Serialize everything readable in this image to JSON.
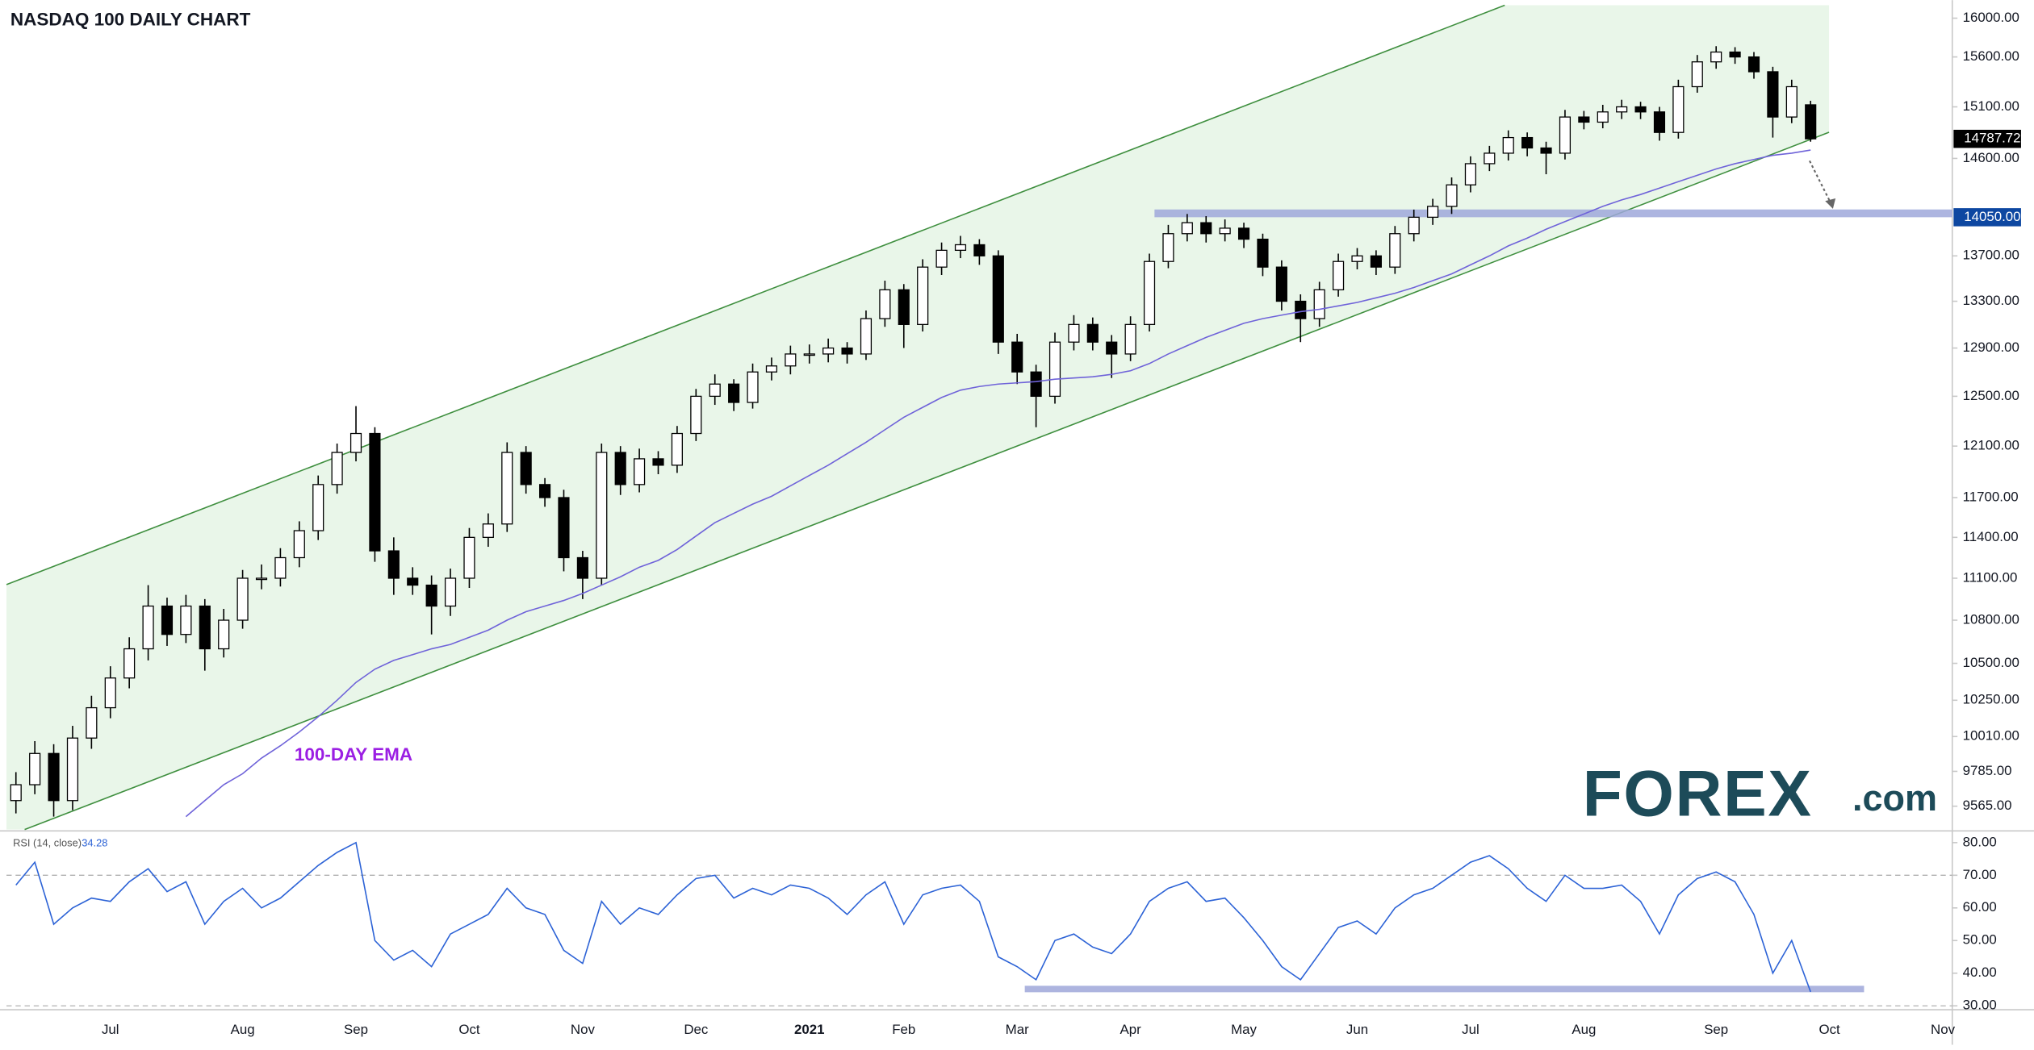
{
  "chart_data": [
    {
      "type": "candlestick",
      "title": "NASDAQ 100 DAILY CHART",
      "categories": [
        null,
        null,
        null,
        null,
        null,
        "Jul",
        null,
        null,
        null,
        null,
        null,
        null,
        "Aug",
        null,
        null,
        null,
        null,
        null,
        "Sep",
        null,
        null,
        null,
        null,
        null,
        "Oct",
        null,
        null,
        null,
        null,
        null,
        "Nov",
        null,
        null,
        null,
        null,
        null,
        "Dec",
        null,
        null,
        null,
        null,
        null,
        "2021",
        null,
        null,
        null,
        null,
        "Feb",
        null,
        null,
        null,
        null,
        null,
        "Mar",
        null,
        null,
        null,
        null,
        null,
        "Apr",
        null,
        null,
        null,
        null,
        null,
        "May",
        null,
        null,
        null,
        null,
        null,
        "Jun",
        null,
        null,
        null,
        null,
        null,
        "Jul",
        null,
        null,
        null,
        null,
        null,
        "Aug",
        null,
        null,
        null,
        null,
        null,
        null,
        "Sep",
        null,
        null,
        null,
        null,
        null,
        "Oct",
        null,
        null,
        null,
        null,
        null,
        "Nov"
      ],
      "open": [
        9600,
        9700,
        9900,
        9600,
        10000,
        10200,
        10400,
        10600,
        10900,
        10700,
        10900,
        10600,
        10800,
        11100,
        11100,
        11250,
        11450,
        11800,
        12050,
        12200,
        11300,
        11100,
        11050,
        10900,
        11100,
        11400,
        11500,
        12050,
        11800,
        11700,
        11250,
        11100,
        12050,
        11800,
        12000,
        11950,
        12200,
        12500,
        12600,
        12450,
        12700,
        12750,
        12850,
        12850,
        12900,
        12850,
        13150,
        13400,
        13100,
        13600,
        13750,
        13800,
        13700,
        12950,
        12700,
        12500,
        12950,
        13100,
        12950,
        12850,
        13100,
        13650,
        13900,
        14000,
        13900,
        13950,
        13850,
        13600,
        13300,
        13150,
        13400,
        13650,
        13700,
        13600,
        13900,
        14050,
        14150,
        14350,
        14550,
        14650,
        14800,
        14700,
        14650,
        15000,
        14950,
        15050,
        15100,
        15050,
        14850,
        15300,
        15550,
        15650,
        15600,
        15450,
        15000,
        15120,
        null,
        null,
        null,
        null,
        null,
        null,
        null
      ],
      "high": [
        9780,
        9980,
        9960,
        10080,
        10280,
        10480,
        10680,
        11050,
        10960,
        10980,
        10950,
        10880,
        11160,
        11200,
        11320,
        11520,
        11870,
        12120,
        12420,
        12250,
        11400,
        11180,
        11120,
        11170,
        11470,
        11580,
        12130,
        12100,
        11850,
        11760,
        11300,
        12120,
        12100,
        12080,
        12060,
        12260,
        12560,
        12680,
        12640,
        12770,
        12820,
        12920,
        12930,
        12980,
        12950,
        13220,
        13480,
        13450,
        13670,
        13820,
        13880,
        13850,
        13750,
        13020,
        12760,
        13030,
        13180,
        13160,
        13010,
        13170,
        13720,
        13980,
        14080,
        14060,
        14030,
        14000,
        13900,
        13660,
        13360,
        13470,
        13720,
        13770,
        13750,
        13970,
        14120,
        14220,
        14420,
        14620,
        14720,
        14870,
        14850,
        14760,
        15070,
        15060,
        15120,
        15170,
        15150,
        15100,
        15370,
        15620,
        15710,
        15700,
        15650,
        15500,
        15370,
        15160,
        null,
        null,
        null,
        null,
        null,
        null,
        null
      ],
      "low": [
        9520,
        9640,
        9500,
        9540,
        9930,
        10130,
        10330,
        10520,
        10620,
        10640,
        10450,
        10540,
        10740,
        11020,
        11040,
        11180,
        11380,
        11730,
        11980,
        11220,
        10980,
        10980,
        10700,
        10830,
        11030,
        11330,
        11440,
        11730,
        11630,
        11150,
        10950,
        11050,
        11720,
        11740,
        11880,
        11890,
        12140,
        12430,
        12380,
        12400,
        12630,
        12680,
        12770,
        12780,
        12770,
        12800,
        13080,
        12900,
        13040,
        13530,
        13680,
        13620,
        12850,
        12600,
        12250,
        12440,
        12880,
        12880,
        12650,
        12790,
        13040,
        13590,
        13830,
        13820,
        13830,
        13770,
        13520,
        13220,
        12950,
        13080,
        13340,
        13580,
        13530,
        13540,
        13830,
        13980,
        14080,
        14280,
        14480,
        14580,
        14620,
        14450,
        14590,
        14880,
        14890,
        14980,
        14980,
        14770,
        14790,
        15240,
        15480,
        15530,
        15380,
        14800,
        14940,
        14760,
        null,
        null,
        null,
        null,
        null,
        null,
        null
      ],
      "close": [
        9700,
        9900,
        9600,
        10000,
        10200,
        10400,
        10600,
        10900,
        10700,
        10900,
        10600,
        10800,
        11100,
        11100,
        11250,
        11450,
        11800,
        12050,
        12200,
        11300,
        11100,
        11050,
        10900,
        11100,
        11400,
        11500,
        12050,
        11800,
        11700,
        11250,
        11100,
        12050,
        11800,
        12000,
        11950,
        12200,
        12500,
        12600,
        12450,
        12700,
        12750,
        12850,
        12850,
        12900,
        12850,
        13150,
        13400,
        13100,
        13600,
        13750,
        13800,
        13700,
        12950,
        12700,
        12500,
        12950,
        13100,
        12950,
        12850,
        13100,
        13650,
        13900,
        14000,
        13900,
        13950,
        13850,
        13600,
        13300,
        13150,
        13400,
        13650,
        13700,
        13600,
        13900,
        14050,
        14150,
        14350,
        14550,
        14650,
        14800,
        14700,
        14650,
        15000,
        14950,
        15050,
        15100,
        15050,
        14850,
        15300,
        15550,
        15650,
        15600,
        15450,
        15000,
        15300,
        14787.72,
        null,
        null,
        null,
        null,
        null,
        null,
        null
      ],
      "color_up": "#ffffff",
      "color_down": "#000000",
      "wick_color": "#000000",
      "series": [
        {
          "name": "100-DAY EMA",
          "color": "#6f63d9",
          "label_color": "#9b1fe3",
          "values": [
            null,
            null,
            null,
            null,
            null,
            null,
            null,
            null,
            null,
            9500,
            9600,
            9700,
            9770,
            9870,
            9950,
            10040,
            10140,
            10250,
            10370,
            10460,
            10520,
            10560,
            10600,
            10630,
            10680,
            10730,
            10800,
            10860,
            10900,
            10940,
            10990,
            11050,
            11110,
            11180,
            11230,
            11310,
            11410,
            11510,
            11580,
            11650,
            11710,
            11790,
            11870,
            11950,
            12040,
            12130,
            12230,
            12330,
            12410,
            12490,
            12550,
            12580,
            12600,
            12610,
            12620,
            12640,
            12650,
            12660,
            12680,
            12710,
            12770,
            12850,
            12920,
            12990,
            13050,
            13110,
            13150,
            13180,
            13210,
            13230,
            13260,
            13290,
            13330,
            13370,
            13420,
            13480,
            13540,
            13620,
            13700,
            13790,
            13860,
            13940,
            14010,
            14080,
            14150,
            14210,
            14260,
            14320,
            14380,
            14440,
            14500,
            14550,
            14590,
            14630,
            14650,
            14680,
            null,
            null,
            null,
            null,
            null,
            null,
            null
          ]
        }
      ],
      "log_scale": true,
      "ylim": [
        9420,
        16190
      ],
      "yticks": [
        {
          "value": 16000,
          "label": "16000.00"
        },
        {
          "value": 15600,
          "label": "15600.00"
        },
        {
          "value": 15100,
          "label": "15100.00"
        },
        {
          "value": 14600,
          "label": "14600.00"
        },
        {
          "value": 13700,
          "label": "13700.00"
        },
        {
          "value": 13300,
          "label": "13300.00"
        },
        {
          "value": 12900,
          "label": "12900.00"
        },
        {
          "value": 12500,
          "label": "12500.00"
        },
        {
          "value": 12100,
          "label": "12100.00"
        },
        {
          "value": 11700,
          "label": "11700.00"
        },
        {
          "value": 11400,
          "label": "11400.00"
        },
        {
          "value": 11100,
          "label": "11100.00"
        },
        {
          "value": 10800,
          "label": "10800.00"
        },
        {
          "value": 10500,
          "label": "10500.00"
        },
        {
          "value": 10250,
          "label": "10250.00"
        },
        {
          "value": 10010,
          "label": "10010.00"
        },
        {
          "value": 9785,
          "label": "9785.00"
        },
        {
          "value": 9565,
          "label": "9565.00"
        }
      ],
      "support_level": {
        "value": 14050,
        "label": "14050.00",
        "color": "#0d47a1"
      },
      "last_price_color": "#000000",
      "logo": {
        "brand": "FOREX",
        "suffix": ".com",
        "color": "#1d4b59"
      }
    },
    {
      "type": "line",
      "title": "RSI (14, close)",
      "color": "#2d63d6",
      "values": [
        67,
        74,
        55,
        60,
        63,
        62,
        68,
        72,
        65,
        68,
        55,
        62,
        66,
        60,
        63,
        68,
        73,
        77,
        80,
        50,
        44,
        47,
        42,
        52,
        55,
        58,
        66,
        60,
        58,
        47,
        43,
        62,
        55,
        60,
        58,
        64,
        69,
        70,
        63,
        66,
        64,
        67,
        66,
        63,
        58,
        64,
        68,
        55,
        64,
        66,
        67,
        62,
        45,
        42,
        38,
        50,
        52,
        48,
        46,
        52,
        62,
        66,
        68,
        62,
        63,
        57,
        50,
        42,
        38,
        46,
        54,
        56,
        52,
        60,
        64,
        66,
        70,
        74,
        76,
        72,
        66,
        62,
        70,
        66,
        66,
        67,
        62,
        52,
        64,
        69,
        71,
        68,
        58,
        40,
        50,
        34.28,
        null,
        null,
        null,
        null,
        null,
        null,
        null
      ],
      "ylim": [
        29.2,
        83.2
      ],
      "yticks": [
        {
          "value": 80,
          "label": "80.00"
        },
        {
          "value": 70,
          "label": "70.00"
        },
        {
          "value": 60,
          "label": "60.00"
        },
        {
          "value": 50,
          "label": "50.00"
        },
        {
          "value": 40,
          "label": "40.00"
        },
        {
          "value": 30,
          "label": "30.00"
        }
      ],
      "guides": [
        70,
        30
      ]
    }
  ]
}
